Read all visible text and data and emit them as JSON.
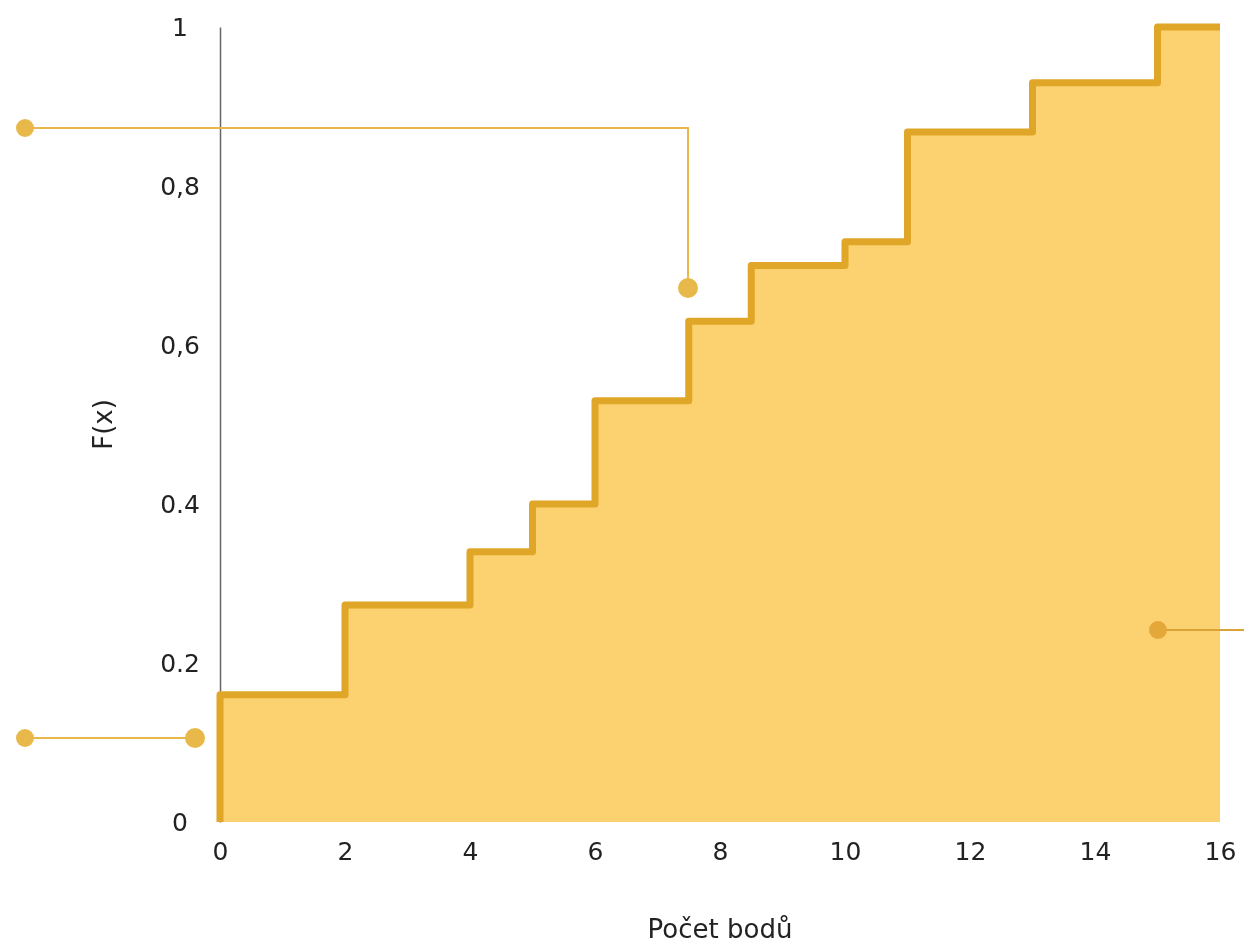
{
  "chart_data": {
    "type": "step",
    "xlabel": "Počet bodů",
    "ylabel": "F(x)",
    "x": [
      0,
      0,
      2,
      4,
      5,
      6,
      7.5,
      8.5,
      10,
      11,
      13,
      15,
      16
    ],
    "series": [
      {
        "color": "#e0a627",
        "values": [
          0,
          0.16,
          0.273,
          0.34,
          0.4,
          0.53,
          0.63,
          0.7,
          0.73,
          0.868,
          0.93,
          1.0,
          1.0
        ]
      }
    ],
    "xlim": [
      0,
      16
    ],
    "xticks": [
      0,
      2,
      4,
      6,
      8,
      10,
      12,
      14,
      16
    ],
    "ylim": [
      0,
      1
    ],
    "yticks": [
      0,
      {
        "value": 0.2,
        "label": "0.2"
      },
      {
        "value": 0.4,
        "label": "0.4"
      },
      {
        "value": 0.6,
        "label": "0,6"
      },
      {
        "value": 0.8,
        "label": "0,8"
      },
      1
    ],
    "grid": false
  }
}
